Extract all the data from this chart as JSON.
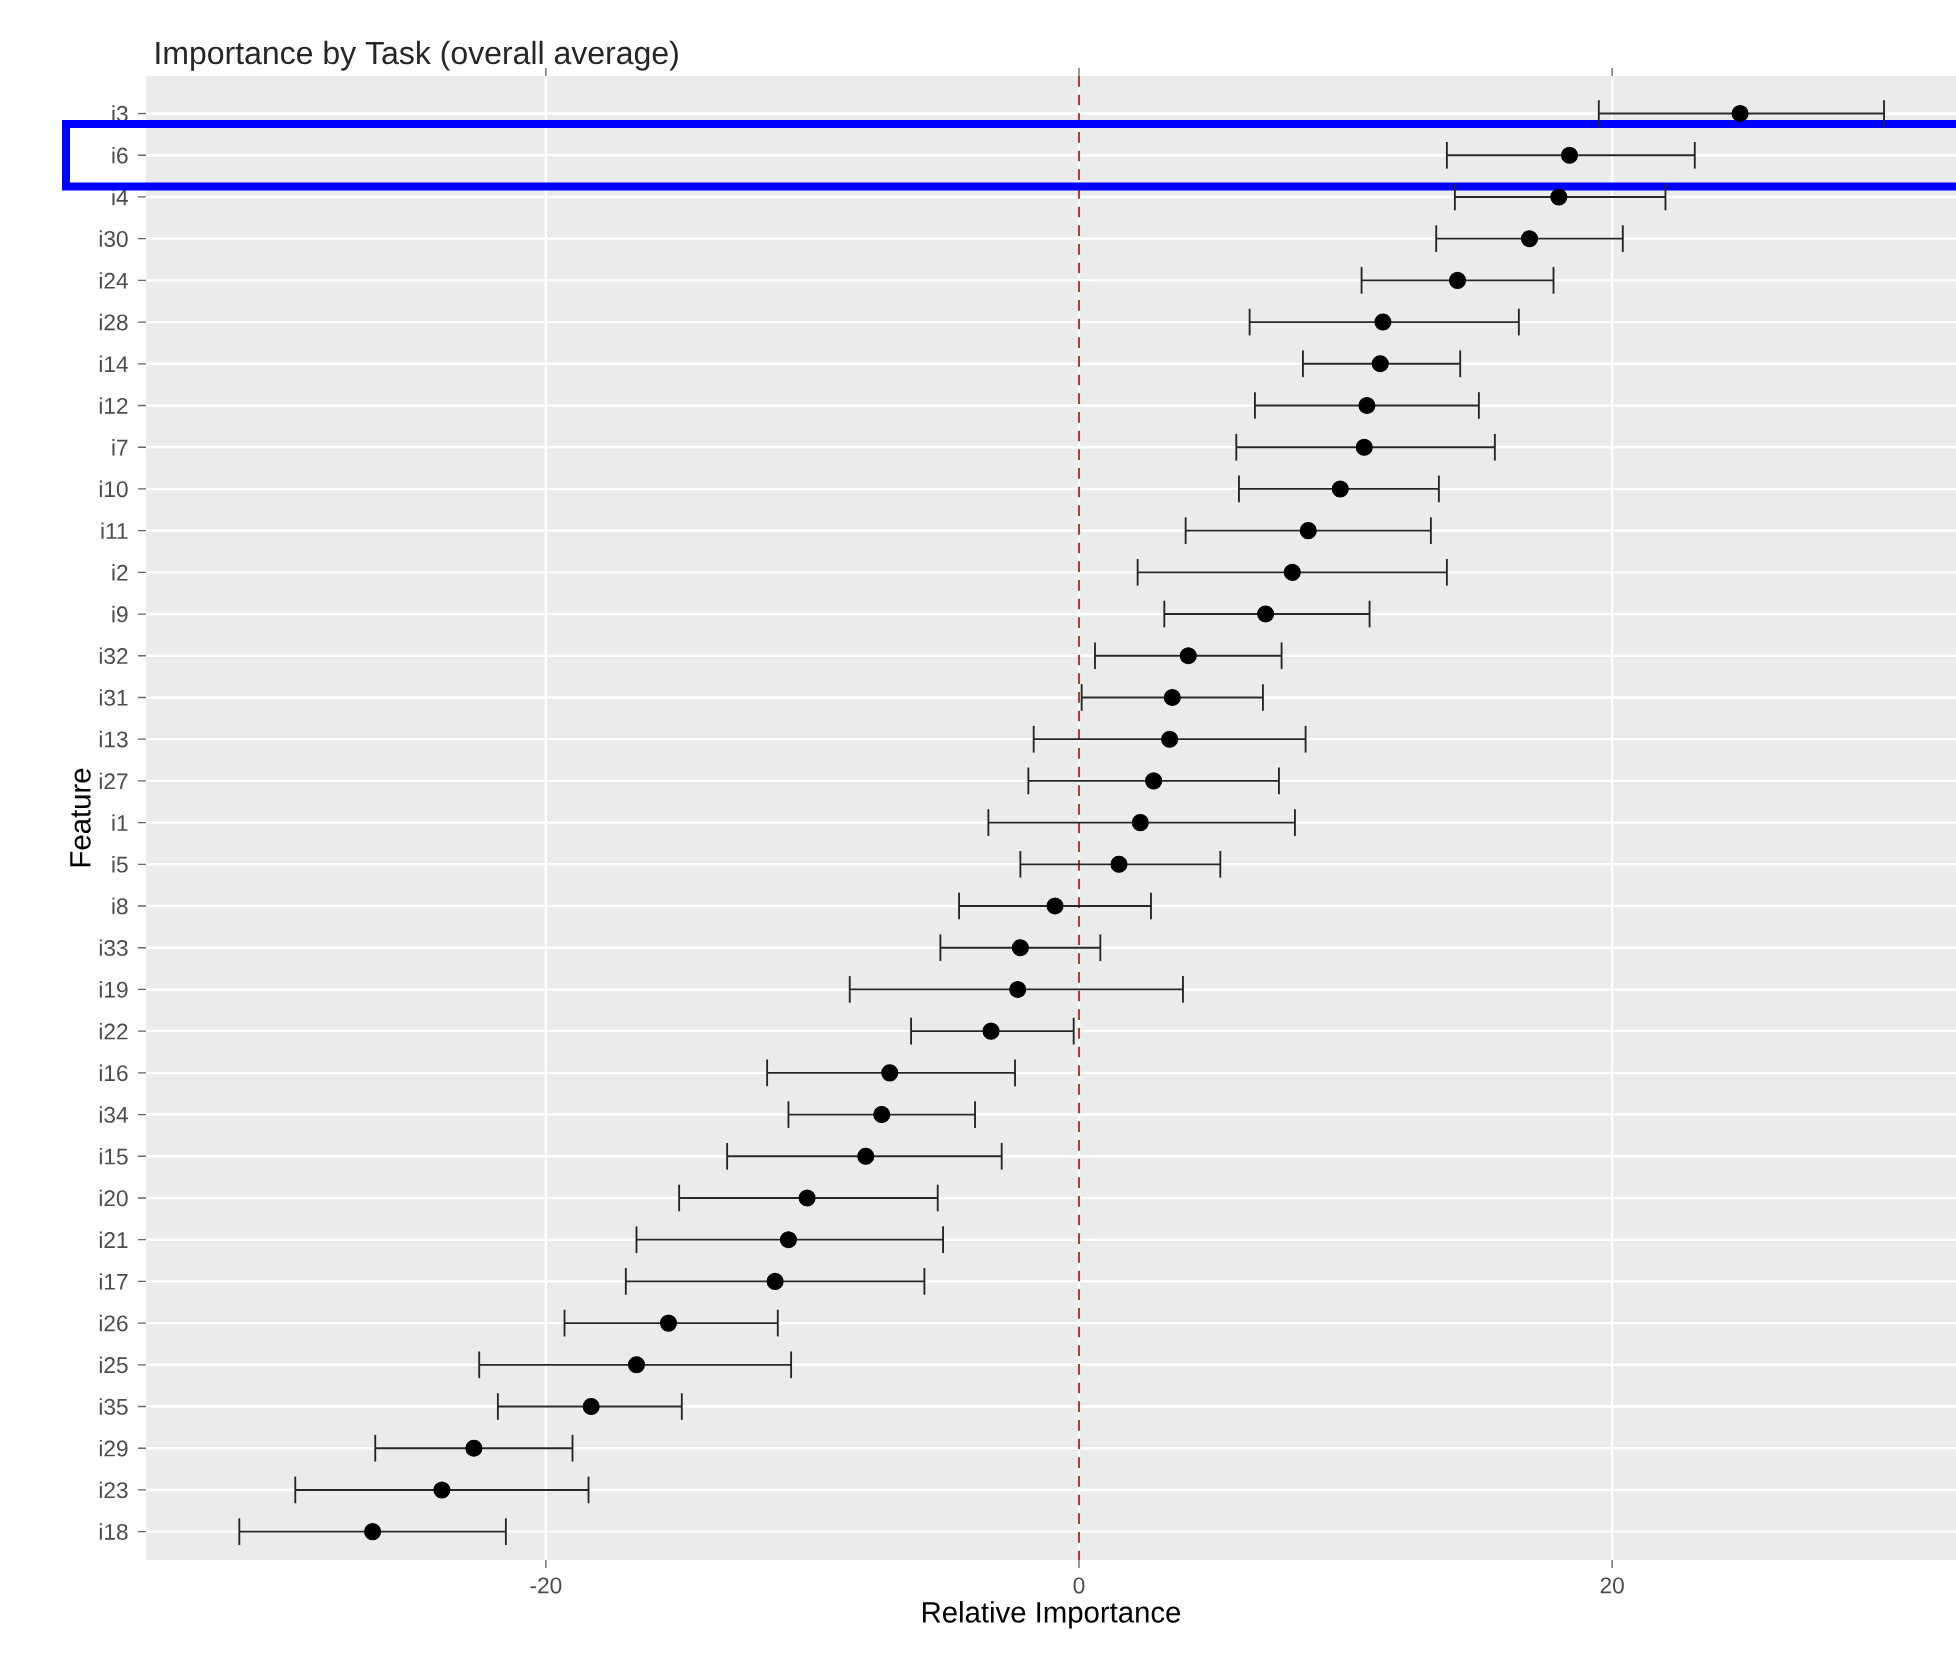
{
  "chart_data": {
    "type": "scatter",
    "orientation": "horizontal",
    "title": "Importance by Task (overall average)",
    "xlabel": "Relative Importance",
    "ylabel": "Feature",
    "categories": [
      "i3",
      "i6",
      "i4",
      "i30",
      "i24",
      "i28",
      "i14",
      "i12",
      "i7",
      "i10",
      "i11",
      "i2",
      "i9",
      "i32",
      "i31",
      "i13",
      "i27",
      "i1",
      "i5",
      "i8",
      "i33",
      "i19",
      "i22",
      "i16",
      "i34",
      "i15",
      "i20",
      "i21",
      "i17",
      "i26",
      "i25",
      "i35",
      "i29",
      "i23",
      "i18"
    ],
    "values": [
      24.8,
      18.4,
      18.0,
      16.9,
      14.2,
      11.4,
      11.3,
      10.8,
      10.7,
      9.8,
      8.6,
      8.0,
      7.0,
      4.1,
      3.5,
      3.4,
      2.8,
      2.3,
      1.5,
      -0.9,
      -2.2,
      -2.3,
      -3.3,
      -7.1,
      -7.4,
      -8.0,
      -10.2,
      -10.9,
      -11.4,
      -15.4,
      -16.6,
      -18.3,
      -22.7,
      -23.9,
      -26.5
    ],
    "errors": [
      [
        19.5,
        30.2
      ],
      [
        13.8,
        23.1
      ],
      [
        14.1,
        22.0
      ],
      [
        13.4,
        20.4
      ],
      [
        10.6,
        17.8
      ],
      [
        6.4,
        16.5
      ],
      [
        8.4,
        14.3
      ],
      [
        6.6,
        15.0
      ],
      [
        5.9,
        15.6
      ],
      [
        6.0,
        13.5
      ],
      [
        4.0,
        13.2
      ],
      [
        2.2,
        13.8
      ],
      [
        3.2,
        10.9
      ],
      [
        0.6,
        7.6
      ],
      [
        0.1,
        6.9
      ],
      [
        -1.7,
        8.5
      ],
      [
        -1.9,
        7.5
      ],
      [
        -3.4,
        8.1
      ],
      [
        -2.2,
        5.3
      ],
      [
        -4.5,
        2.7
      ],
      [
        -5.2,
        0.8
      ],
      [
        -8.6,
        3.9
      ],
      [
        -6.3,
        -0.2
      ],
      [
        -11.7,
        -2.4
      ],
      [
        -10.9,
        -3.9
      ],
      [
        -13.2,
        -2.9
      ],
      [
        -15.0,
        -5.3
      ],
      [
        -16.6,
        -5.1
      ],
      [
        -17.0,
        -5.8
      ],
      [
        -19.3,
        -11.3
      ],
      [
        -22.5,
        -10.8
      ],
      [
        -21.8,
        -14.9
      ],
      [
        -26.4,
        -19.0
      ],
      [
        -29.4,
        -18.4
      ],
      [
        -31.5,
        -21.5
      ]
    ],
    "color": "#000000",
    "xlim": [
      -35,
      32.9
    ],
    "xticks": [
      -20,
      0,
      20
    ],
    "grid": true,
    "ref_lines": [
      {
        "axis": "x",
        "value": 0,
        "color": "#a0443c",
        "line_style": "dashed"
      }
    ]
  }
}
